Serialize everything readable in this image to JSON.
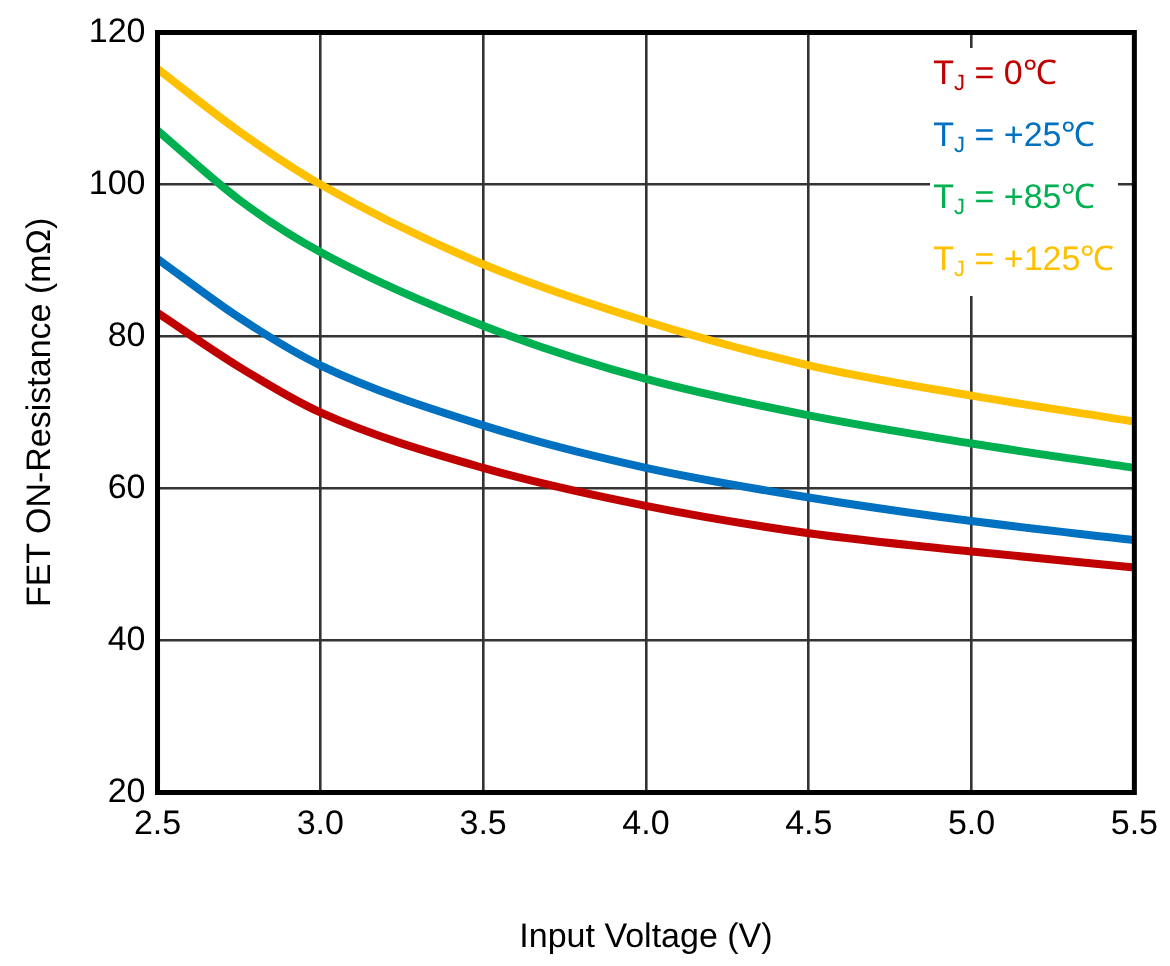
{
  "chart_data": {
    "type": "line",
    "xlabel": "Input Voltage (V)",
    "ylabel": "FET ON-Resistance (mΩ)",
    "x": [
      2.5,
      2.75,
      3.0,
      3.5,
      4.0,
      4.5,
      5.0,
      5.5
    ],
    "series": [
      {
        "name": "T$_{J}$ = 0℃",
        "color": "#c00000",
        "values": [
          83.1,
          76,
          70.0,
          62.7,
          57.7,
          54.1,
          51.7,
          49.6
        ]
      },
      {
        "name": "T$_{J}$ = +25℃",
        "color": "#0070c0",
        "values": [
          90.2,
          82.5,
          76.2,
          68.3,
          62.7,
          58.8,
          55.7,
          53.2
        ]
      },
      {
        "name": "T$_{J}$ = +85℃",
        "color": "#00b050",
        "values": [
          107.1,
          98,
          91.1,
          81.4,
          74.4,
          69.6,
          65.9,
          62.7
        ]
      },
      {
        "name": "T$_{J}$ = +125℃",
        "color": "#ffc000",
        "values": [
          115.2,
          107,
          100,
          89.5,
          82.0,
          76.2,
          72.2,
          68.8
        ]
      }
    ],
    "xlim": [
      2.5,
      5.5
    ],
    "xticks": [
      {
        "value": 2.5,
        "label": "2.5"
      },
      {
        "value": 3.0,
        "label": "3.0"
      },
      {
        "value": 3.5,
        "label": "3.5"
      },
      {
        "value": 4.0,
        "label": "4.0"
      },
      {
        "value": 4.5,
        "label": "4.5"
      },
      {
        "value": 5.0,
        "label": "5.0"
      },
      {
        "value": 5.5,
        "label": "5.5"
      }
    ],
    "ylim": [
      20,
      120
    ],
    "yticks": [
      20,
      40,
      60,
      80,
      100,
      120
    ],
    "grid": true,
    "legend": "top right",
    "marker": "none",
    "line_style": "solid"
  }
}
